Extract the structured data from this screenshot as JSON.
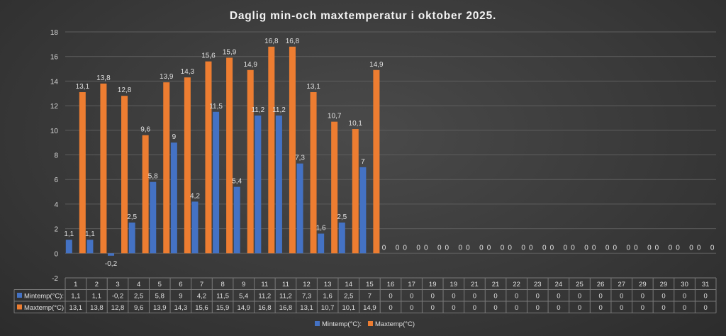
{
  "chart_data": {
    "type": "bar",
    "title": "Daglig min-och maxtemperatur i oktober 2025.",
    "xlabel": "",
    "ylabel": "",
    "ylim": [
      -2,
      18
    ],
    "yticks": [
      -2,
      0,
      2,
      4,
      6,
      8,
      10,
      12,
      14,
      16,
      18
    ],
    "grid": true,
    "legend_position": "bottom",
    "data_table": true,
    "categories": [
      "1",
      "2",
      "3",
      "4",
      "5",
      "6",
      "7",
      "8",
      "9",
      "11",
      "11",
      "12",
      "13",
      "14",
      "15",
      "16",
      "17",
      "19",
      "19",
      "21",
      "21",
      "22",
      "23",
      "24",
      "25",
      "26",
      "27",
      "29",
      "29",
      "30",
      "31"
    ],
    "series": [
      {
        "name": "Mintemp(°C):",
        "color": "#4472c4",
        "values": [
          1.1,
          1.1,
          -0.2,
          2.5,
          5.8,
          9,
          4.2,
          11.5,
          5.4,
          11.2,
          11.2,
          7.3,
          1.6,
          2.5,
          7,
          0,
          0,
          0,
          0,
          0,
          0,
          0,
          0,
          0,
          0,
          0,
          0,
          0,
          0,
          0,
          0
        ],
        "labels": [
          "1,1",
          "1,1",
          "-0,2",
          "2,5",
          "5,8",
          "9",
          "4,2",
          "11,5",
          "5,4",
          "11,2",
          "11,2",
          "7,3",
          "1,6",
          "2,5",
          "7",
          "0",
          "0",
          "0",
          "0",
          "0",
          "0",
          "0",
          "0",
          "0",
          "0",
          "0",
          "0",
          "0",
          "0",
          "0",
          "0"
        ]
      },
      {
        "name": "Maxtemp(°C)",
        "color": "#ed7d31",
        "values": [
          13.1,
          13.8,
          12.8,
          9.6,
          13.9,
          14.3,
          15.6,
          15.9,
          14.9,
          16.8,
          16.8,
          13.1,
          10.7,
          10.1,
          14.9,
          0,
          0,
          0,
          0,
          0,
          0,
          0,
          0,
          0,
          0,
          0,
          0,
          0,
          0,
          0,
          0
        ],
        "labels": [
          "13,1",
          "13,8",
          "12,8",
          "9,6",
          "13,9",
          "14,3",
          "15,6",
          "15,9",
          "14,9",
          "16,8",
          "16,8",
          "13,1",
          "10,7",
          "10,1",
          "14,9",
          "0",
          "0",
          "0",
          "0",
          "0",
          "0",
          "0",
          "0",
          "0",
          "0",
          "0",
          "0",
          "0",
          "0",
          "0",
          "0"
        ]
      }
    ]
  }
}
